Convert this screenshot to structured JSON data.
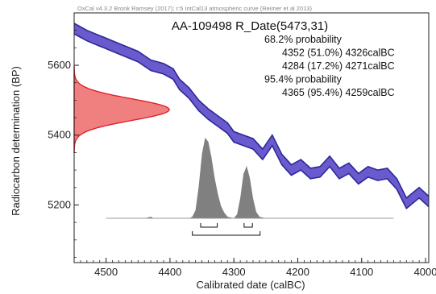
{
  "chart_data": {
    "type": "area",
    "header": "OxCal v4.3.2 Bronk Ramsey (2017); r:5 IntCal13 atmospheric curve (Reimer et al 2013)",
    "title": "AA-109498 R_Date(5473,31)",
    "xlabel": "Calibrated date (calBC)",
    "ylabel": "Radiocarbon determination (BP)",
    "x_ticks": [
      4500,
      4400,
      4300,
      4200,
      4100,
      4000
    ],
    "y_ticks": [
      5200,
      5400,
      5600
    ],
    "xlim": [
      4550,
      3995
    ],
    "ylim": [
      5035,
      5750
    ],
    "colors": {
      "curve_fill": "#6a5acd",
      "curve_edge": "#2a2a99",
      "measurement_fill": "#f08080",
      "measurement_edge": "#e0202a",
      "posterior_fill": "#808080",
      "baseline": "#999999"
    },
    "probabilities": [
      {
        "text": "68.2% probability"
      },
      {
        "text": "4352 (51.0%) 4326calBC"
      },
      {
        "text": "4284 (17.2%) 4271calBC"
      },
      {
        "text": "95.4% probability"
      },
      {
        "text": "4365 (95.4%) 4259calBC"
      }
    ],
    "ranges_68": [
      [
        4352,
        4326
      ],
      [
        4284,
        4271
      ]
    ],
    "ranges_95": [
      [
        4365,
        4259
      ]
    ],
    "measurement": {
      "mean": 5473,
      "sd": 31
    },
    "calibration_curve": {
      "x": [
        4550,
        4530,
        4510,
        4490,
        4470,
        4450,
        4430,
        4410,
        4395,
        4385,
        4370,
        4355,
        4340,
        4325,
        4310,
        4300,
        4285,
        4270,
        4255,
        4240,
        4225,
        4210,
        4195,
        4180,
        4165,
        4150,
        4135,
        4120,
        4105,
        4090,
        4075,
        4060,
        4045,
        4030,
        4020,
        4010,
        3995
      ],
      "y": [
        5705,
        5685,
        5670,
        5655,
        5640,
        5625,
        5600,
        5590,
        5575,
        5545,
        5520,
        5485,
        5460,
        5440,
        5420,
        5395,
        5385,
        5375,
        5345,
        5385,
        5330,
        5300,
        5315,
        5290,
        5295,
        5325,
        5290,
        5305,
        5275,
        5295,
        5285,
        5290,
        5260,
        5205,
        5220,
        5235,
        5210
      ],
      "half_width": 15
    },
    "posterior": {
      "x": [
        4500,
        4440,
        4435,
        4430,
        4425,
        4370,
        4365,
        4360,
        4355,
        4350,
        4345,
        4340,
        4335,
        4330,
        4325,
        4320,
        4315,
        4310,
        4300,
        4295,
        4290,
        4285,
        4280,
        4275,
        4270,
        4265,
        4260,
        4250,
        4050
      ],
      "density": [
        0,
        0,
        0.01,
        0.02,
        0,
        0,
        0.02,
        0.1,
        0.4,
        0.8,
        1.0,
        0.95,
        0.75,
        0.5,
        0.3,
        0.15,
        0.07,
        0.02,
        0.0,
        0.05,
        0.25,
        0.55,
        0.65,
        0.5,
        0.25,
        0.08,
        0.02,
        0,
        0
      ]
    }
  }
}
